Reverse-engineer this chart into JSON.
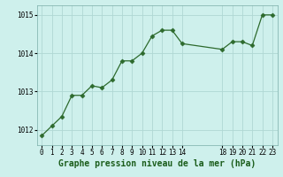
{
  "x": [
    0,
    1,
    2,
    3,
    4,
    5,
    6,
    7,
    8,
    9,
    10,
    11,
    12,
    13,
    14,
    18,
    19,
    20,
    21,
    22,
    23
  ],
  "y": [
    1011.85,
    1012.1,
    1012.35,
    1012.9,
    1012.9,
    1013.15,
    1013.1,
    1013.3,
    1013.8,
    1013.8,
    1014.0,
    1014.45,
    1014.6,
    1014.6,
    1014.25,
    1014.1,
    1014.3,
    1014.3,
    1014.2,
    1015.0,
    1015.0
  ],
  "line_color": "#2d6a2d",
  "marker": "D",
  "marker_size": 2.5,
  "bg_color": "#cef0ec",
  "grid_color": "#b0d8d4",
  "xlabel": "Graphe pression niveau de la mer (hPa)",
  "xlabel_fontsize": 7,
  "ylim": [
    1011.6,
    1015.25
  ],
  "yticks": [
    1012,
    1013,
    1014,
    1015
  ],
  "xticks": [
    0,
    1,
    2,
    3,
    4,
    5,
    6,
    7,
    8,
    9,
    10,
    11,
    12,
    13,
    14,
    18,
    19,
    20,
    21,
    22,
    23
  ],
  "tick_fontsize": 5.5,
  "label_color": "#1a5c1a"
}
